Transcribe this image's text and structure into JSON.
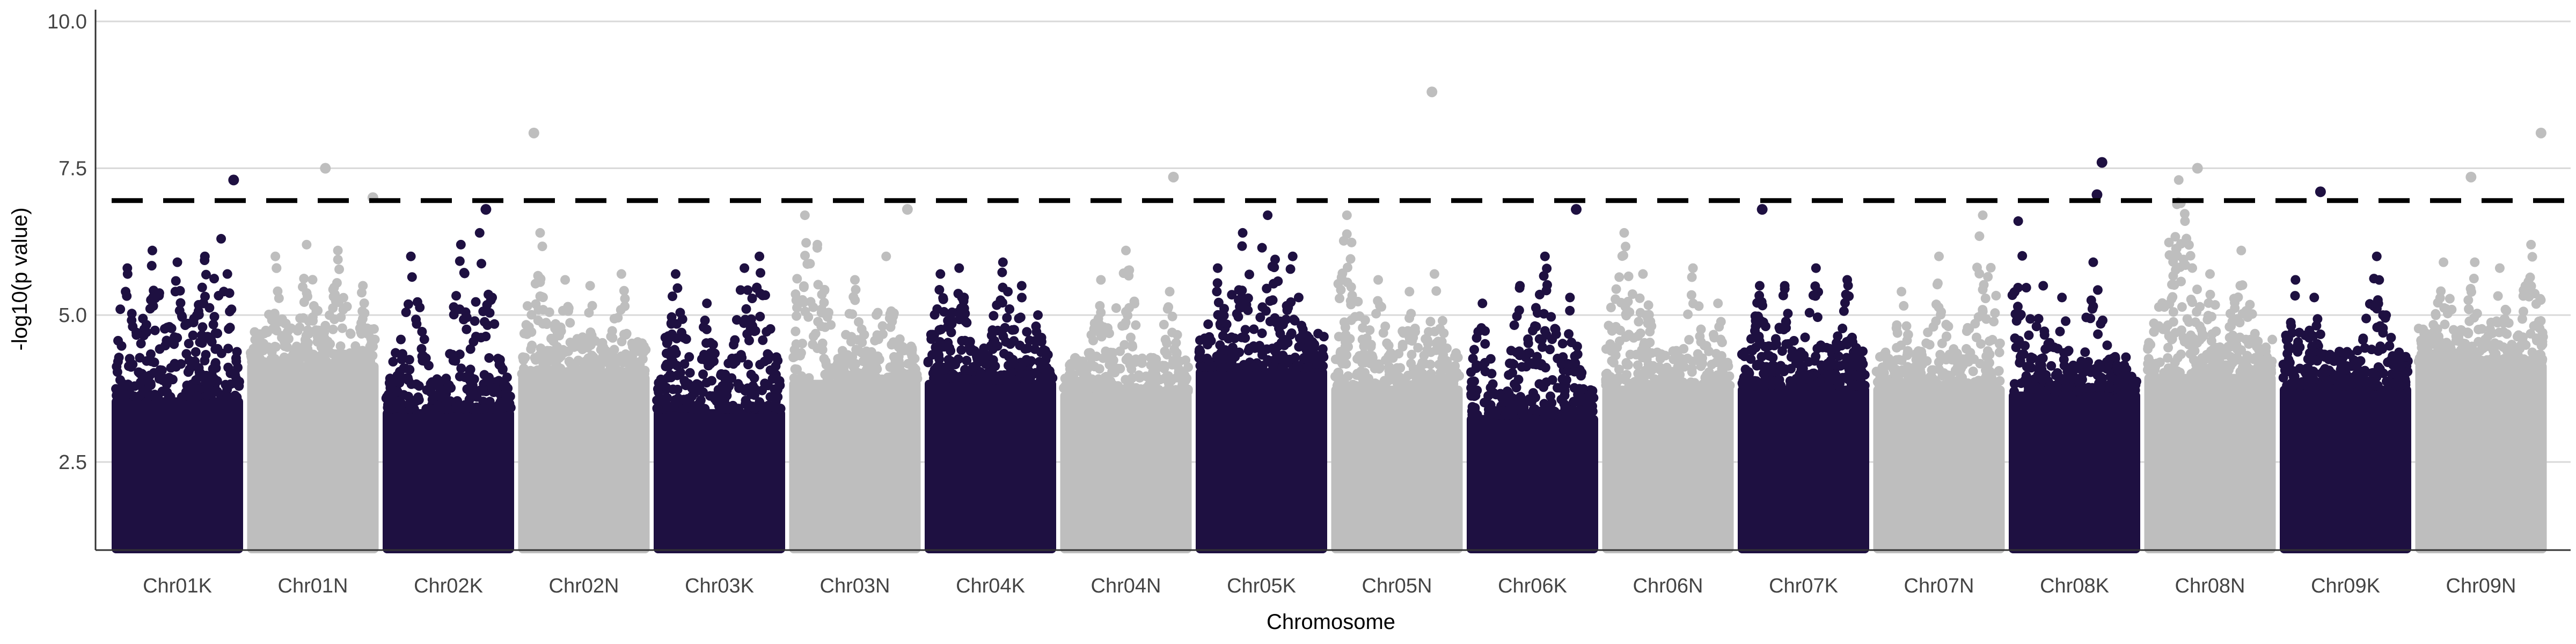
{
  "chart_data": {
    "type": "scatter",
    "subtype": "manhattan",
    "title": "",
    "xlabel": "Chromosome",
    "ylabel": "-log10(p value)",
    "ylim": [
      1.0,
      10.2
    ],
    "yticks": [
      2.5,
      5.0,
      7.5,
      10.0
    ],
    "ytick_labels": [
      "2.5",
      "5.0",
      "7.5",
      "10.0"
    ],
    "grid": "horizontal",
    "legend": "none",
    "threshold": 6.95,
    "colors": {
      "dark": "#1e1041",
      "light": "#bebebe",
      "threshold": "#000000",
      "grid": "#d9d9d9",
      "axis": "#333333"
    },
    "categories": [
      "Chr01K",
      "Chr01N",
      "Chr02K",
      "Chr02N",
      "Chr03K",
      "Chr03N",
      "Chr04K",
      "Chr04N",
      "Chr05K",
      "Chr05N",
      "Chr06K",
      "Chr06N",
      "Chr07K",
      "Chr07N",
      "Chr08K",
      "Chr08N",
      "Chr09K",
      "Chr09N"
    ],
    "chromosomes": [
      {
        "name": "Chr01K",
        "color": "dark",
        "base_top": 4.2,
        "peaks": [
          [
            0.1,
            5.8
          ],
          [
            0.3,
            6.1
          ],
          [
            0.5,
            5.9
          ],
          [
            0.72,
            6.0
          ],
          [
            0.85,
            6.3
          ],
          [
            0.9,
            5.7
          ]
        ],
        "hits": [
          [
            0.95,
            7.3
          ]
        ]
      },
      {
        "name": "Chr01N",
        "color": "light",
        "base_top": 4.8,
        "peaks": [
          [
            0.2,
            6.0
          ],
          [
            0.45,
            6.2
          ],
          [
            0.7,
            6.1
          ],
          [
            0.9,
            5.5
          ]
        ],
        "hits": [
          [
            0.6,
            7.5
          ],
          [
            0.98,
            7.0
          ]
        ]
      },
      {
        "name": "Chr02K",
        "color": "dark",
        "base_top": 4.0,
        "peaks": [
          [
            0.2,
            6.0
          ],
          [
            0.6,
            6.2
          ],
          [
            0.75,
            6.4
          ],
          [
            0.85,
            5.3
          ]
        ],
        "hits": [
          [
            0.8,
            6.8
          ]
        ]
      },
      {
        "name": "Chr02N",
        "color": "light",
        "base_top": 4.6,
        "peaks": [
          [
            0.15,
            6.4
          ],
          [
            0.35,
            5.6
          ],
          [
            0.55,
            5.5
          ],
          [
            0.8,
            5.7
          ]
        ],
        "hits": [
          [
            0.1,
            8.1
          ]
        ]
      },
      {
        "name": "Chr03K",
        "color": "dark",
        "base_top": 4.0,
        "peaks": [
          [
            0.15,
            5.7
          ],
          [
            0.4,
            5.2
          ],
          [
            0.7,
            5.8
          ],
          [
            0.82,
            6.0
          ]
        ],
        "hits": []
      },
      {
        "name": "Chr03N",
        "color": "light",
        "base_top": 4.5,
        "peaks": [
          [
            0.1,
            6.7
          ],
          [
            0.2,
            6.2
          ],
          [
            0.5,
            5.6
          ],
          [
            0.75,
            6.0
          ]
        ],
        "hits": [
          [
            0.92,
            6.8
          ]
        ]
      },
      {
        "name": "Chr04K",
        "color": "dark",
        "base_top": 4.5,
        "peaks": [
          [
            0.1,
            5.7
          ],
          [
            0.25,
            5.8
          ],
          [
            0.6,
            5.9
          ],
          [
            0.75,
            5.5
          ],
          [
            0.88,
            5.0
          ]
        ],
        "hits": []
      },
      {
        "name": "Chr04N",
        "color": "light",
        "base_top": 4.3,
        "peaks": [
          [
            0.3,
            5.6
          ],
          [
            0.5,
            6.1
          ],
          [
            0.85,
            5.4
          ]
        ],
        "hits": [
          [
            0.88,
            7.35
          ]
        ]
      },
      {
        "name": "Chr05K",
        "color": "dark",
        "base_top": 4.7,
        "peaks": [
          [
            0.15,
            5.8
          ],
          [
            0.35,
            6.4
          ],
          [
            0.55,
            6.7
          ],
          [
            0.75,
            6.0
          ]
        ],
        "hits": []
      },
      {
        "name": "Chr05N",
        "color": "light",
        "base_top": 4.4,
        "peaks": [
          [
            0.1,
            6.7
          ],
          [
            0.35,
            5.6
          ],
          [
            0.6,
            5.4
          ],
          [
            0.8,
            5.7
          ]
        ],
        "hits": [
          [
            0.78,
            8.8
          ]
        ]
      },
      {
        "name": "Chr06K",
        "color": "dark",
        "base_top": 3.9,
        "peaks": [
          [
            0.1,
            5.2
          ],
          [
            0.4,
            5.5
          ],
          [
            0.6,
            6.0
          ],
          [
            0.8,
            5.3
          ]
        ],
        "hits": [
          [
            0.85,
            6.8
          ]
        ]
      },
      {
        "name": "Chr06N",
        "color": "light",
        "base_top": 4.4,
        "peaks": [
          [
            0.15,
            6.4
          ],
          [
            0.3,
            5.7
          ],
          [
            0.7,
            5.8
          ],
          [
            0.9,
            5.2
          ]
        ],
        "hits": []
      },
      {
        "name": "Chr07K",
        "color": "dark",
        "base_top": 4.4,
        "peaks": [
          [
            0.15,
            5.5
          ],
          [
            0.35,
            5.5
          ],
          [
            0.6,
            5.8
          ],
          [
            0.85,
            5.6
          ]
        ],
        "hits": [
          [
            0.17,
            6.8
          ]
        ]
      },
      {
        "name": "Chr07N",
        "color": "light",
        "base_top": 4.4,
        "peaks": [
          [
            0.2,
            5.4
          ],
          [
            0.5,
            6.0
          ],
          [
            0.85,
            6.7
          ]
        ],
        "hits": []
      },
      {
        "name": "Chr08K",
        "color": "dark",
        "base_top": 4.3,
        "peaks": [
          [
            0.05,
            6.6
          ],
          [
            0.25,
            5.5
          ],
          [
            0.4,
            5.3
          ],
          [
            0.65,
            5.9
          ]
        ],
        "hits": [
          [
            0.68,
            7.05
          ],
          [
            0.72,
            7.6
          ]
        ]
      },
      {
        "name": "Chr08N",
        "color": "light",
        "base_top": 4.6,
        "peaks": [
          [
            0.25,
            7.3
          ],
          [
            0.3,
            6.6
          ],
          [
            0.5,
            5.7
          ],
          [
            0.75,
            6.1
          ]
        ],
        "hits": [
          [
            0.4,
            7.5
          ]
        ]
      },
      {
        "name": "Chr09K",
        "color": "dark",
        "base_top": 4.4,
        "peaks": [
          [
            0.1,
            5.6
          ],
          [
            0.25,
            5.3
          ],
          [
            0.75,
            6.0
          ],
          [
            0.8,
            5.0
          ]
        ],
        "hits": [
          [
            0.3,
            7.1
          ]
        ]
      },
      {
        "name": "Chr09N",
        "color": "light",
        "base_top": 4.8,
        "peaks": [
          [
            0.2,
            5.9
          ],
          [
            0.45,
            5.9
          ],
          [
            0.65,
            5.8
          ],
          [
            0.9,
            6.2
          ]
        ],
        "hits": [
          [
            0.42,
            7.35
          ],
          [
            0.98,
            8.1
          ]
        ]
      }
    ]
  }
}
